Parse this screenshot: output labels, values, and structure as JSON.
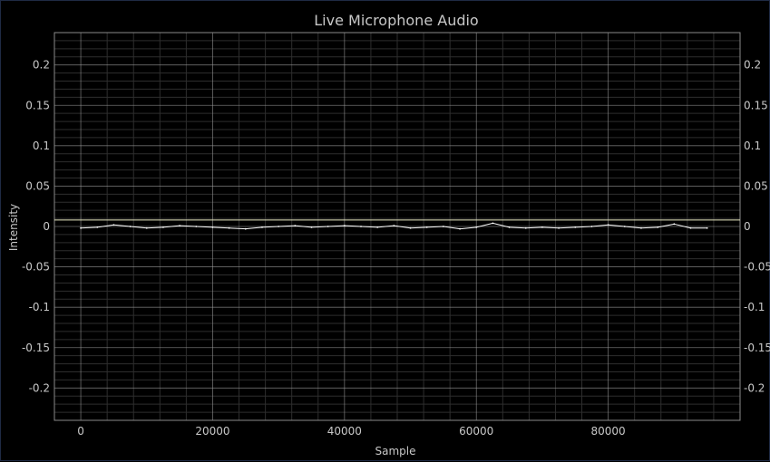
{
  "chart_data": {
    "type": "line",
    "title": "Live Microphone Audio",
    "xlabel": "Sample",
    "ylabel": "Intensity",
    "xlim": [
      -4000,
      100000
    ],
    "ylim": [
      -0.24,
      0.24
    ],
    "x_ticks": [
      0,
      20000,
      40000,
      60000,
      80000
    ],
    "x_tick_labels": [
      "0",
      "20000",
      "40000",
      "60000",
      "80000"
    ],
    "y_ticks": [
      0.2,
      0.15,
      0.1,
      0.05,
      0,
      -0.05,
      -0.1,
      -0.15,
      -0.2
    ],
    "y_tick_labels": [
      "0.2",
      "0.15",
      "0.1",
      "0.05",
      "0",
      "-0.05",
      "-0.1",
      "-0.15",
      "-0.2"
    ],
    "grid": true,
    "reference_line_y": 0.008,
    "series": [
      {
        "x": [
          0,
          2500,
          5000,
          7500,
          10000,
          12500,
          15000,
          17500,
          20000,
          22500,
          25000,
          27500,
          30000,
          32500,
          35000,
          37500,
          40000,
          42500,
          45000,
          47500,
          50000,
          52500,
          55000,
          57500,
          60000,
          62500,
          65000,
          67500,
          70000,
          72500,
          75000,
          77500,
          80000,
          82500,
          85000,
          87500,
          90000,
          92500,
          95000
        ],
        "values": [
          -0.002,
          -0.001,
          0.002,
          0.0,
          -0.002,
          -0.001,
          0.001,
          0.0,
          -0.001,
          -0.002,
          -0.003,
          -0.001,
          0.0,
          0.001,
          -0.001,
          0.0,
          0.001,
          0.0,
          -0.001,
          0.001,
          -0.002,
          -0.001,
          0.0,
          -0.003,
          -0.001,
          0.004,
          -0.001,
          -0.002,
          -0.001,
          -0.002,
          -0.001,
          0.0,
          0.002,
          0.0,
          -0.002,
          -0.001,
          0.003,
          -0.002,
          -0.002
        ],
        "color": "#ffffff"
      }
    ],
    "colors": {
      "background": "#000000",
      "grid_major": "#9a9a9a",
      "grid_minor": "#2e2e2e",
      "reference_line": "#e8e8c0",
      "text": "#c8c8c8"
    }
  }
}
